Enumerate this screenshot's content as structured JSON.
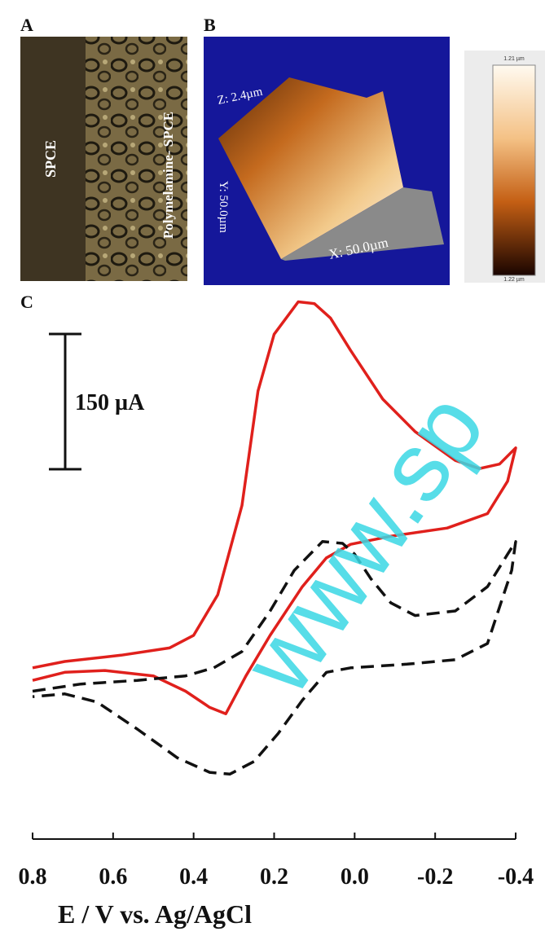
{
  "panel_a": {
    "letter": "A",
    "left_label": "SPCE",
    "right_label": "Polymelamine- SPCE"
  },
  "panel_b": {
    "letter": "B",
    "z_label": "Z: 2.4µm",
    "y_label": "Y: 50.0µm",
    "x_label": "X: 50.0µm",
    "colorbar_top": "1.21 µm",
    "colorbar_bottom": "1.22 µm"
  },
  "watermark": "www.sp",
  "chart_data": {
    "type": "line",
    "panel_letter": "C",
    "x_label": "E / V vs. Ag/AgCl",
    "xlim": [
      0.8,
      -0.4
    ],
    "xticks": [
      0.8,
      0.6,
      0.4,
      0.2,
      {
        "value": 0,
        "label": "0.0"
      },
      -0.2,
      -0.4
    ],
    "ylim": [
      0,
      610
    ],
    "scale_bar": {
      "value": 150,
      "label": "150 µA"
    },
    "series": [
      {
        "color": "#e0201c",
        "dash": false,
        "x": [
          0.8,
          0.72,
          0.58,
          0.46,
          0.4,
          0.34,
          0.28,
          0.24,
          0.2,
          0.14,
          0.1,
          0.06,
          0.01,
          -0.07,
          -0.15,
          -0.25,
          -0.31,
          -0.36,
          -0.4,
          -0.38,
          -0.33,
          -0.23,
          -0.09,
          0.01,
          0.07,
          0.13,
          0.21,
          0.27,
          0.32,
          0.36,
          0.42,
          0.5,
          0.62,
          0.72,
          0.8
        ],
        "values": [
          190,
          197,
          204,
          212,
          226,
          271,
          370,
          497,
          560,
          596,
          594,
          578,
          542,
          488,
          452,
          420,
          411,
          416,
          434,
          397,
          361,
          345,
          336,
          327,
          312,
          280,
          226,
          181,
          139,
          146,
          164,
          181,
          187,
          185,
          176
        ]
      },
      {
        "color": "#111111",
        "dash": true,
        "x": [
          0.8,
          0.68,
          0.54,
          0.42,
          0.35,
          0.28,
          0.21,
          0.15,
          0.08,
          0.03,
          0.0,
          -0.04,
          -0.09,
          -0.15,
          -0.25,
          -0.33,
          -0.38,
          -0.4,
          -0.39,
          -0.33,
          -0.25,
          -0.13,
          0.01,
          0.07,
          0.13,
          0.19,
          0.25,
          0.31,
          0.36,
          0.44,
          0.54,
          0.64,
          0.72,
          0.8
        ],
        "values": [
          164,
          172,
          176,
          181,
          190,
          208,
          253,
          298,
          330,
          328,
          316,
          289,
          262,
          248,
          253,
          280,
          316,
          330,
          298,
          217,
          199,
          194,
          190,
          185,
          154,
          117,
          86,
          72,
          74,
          90,
          122,
          152,
          161,
          158
        ]
      }
    ]
  }
}
